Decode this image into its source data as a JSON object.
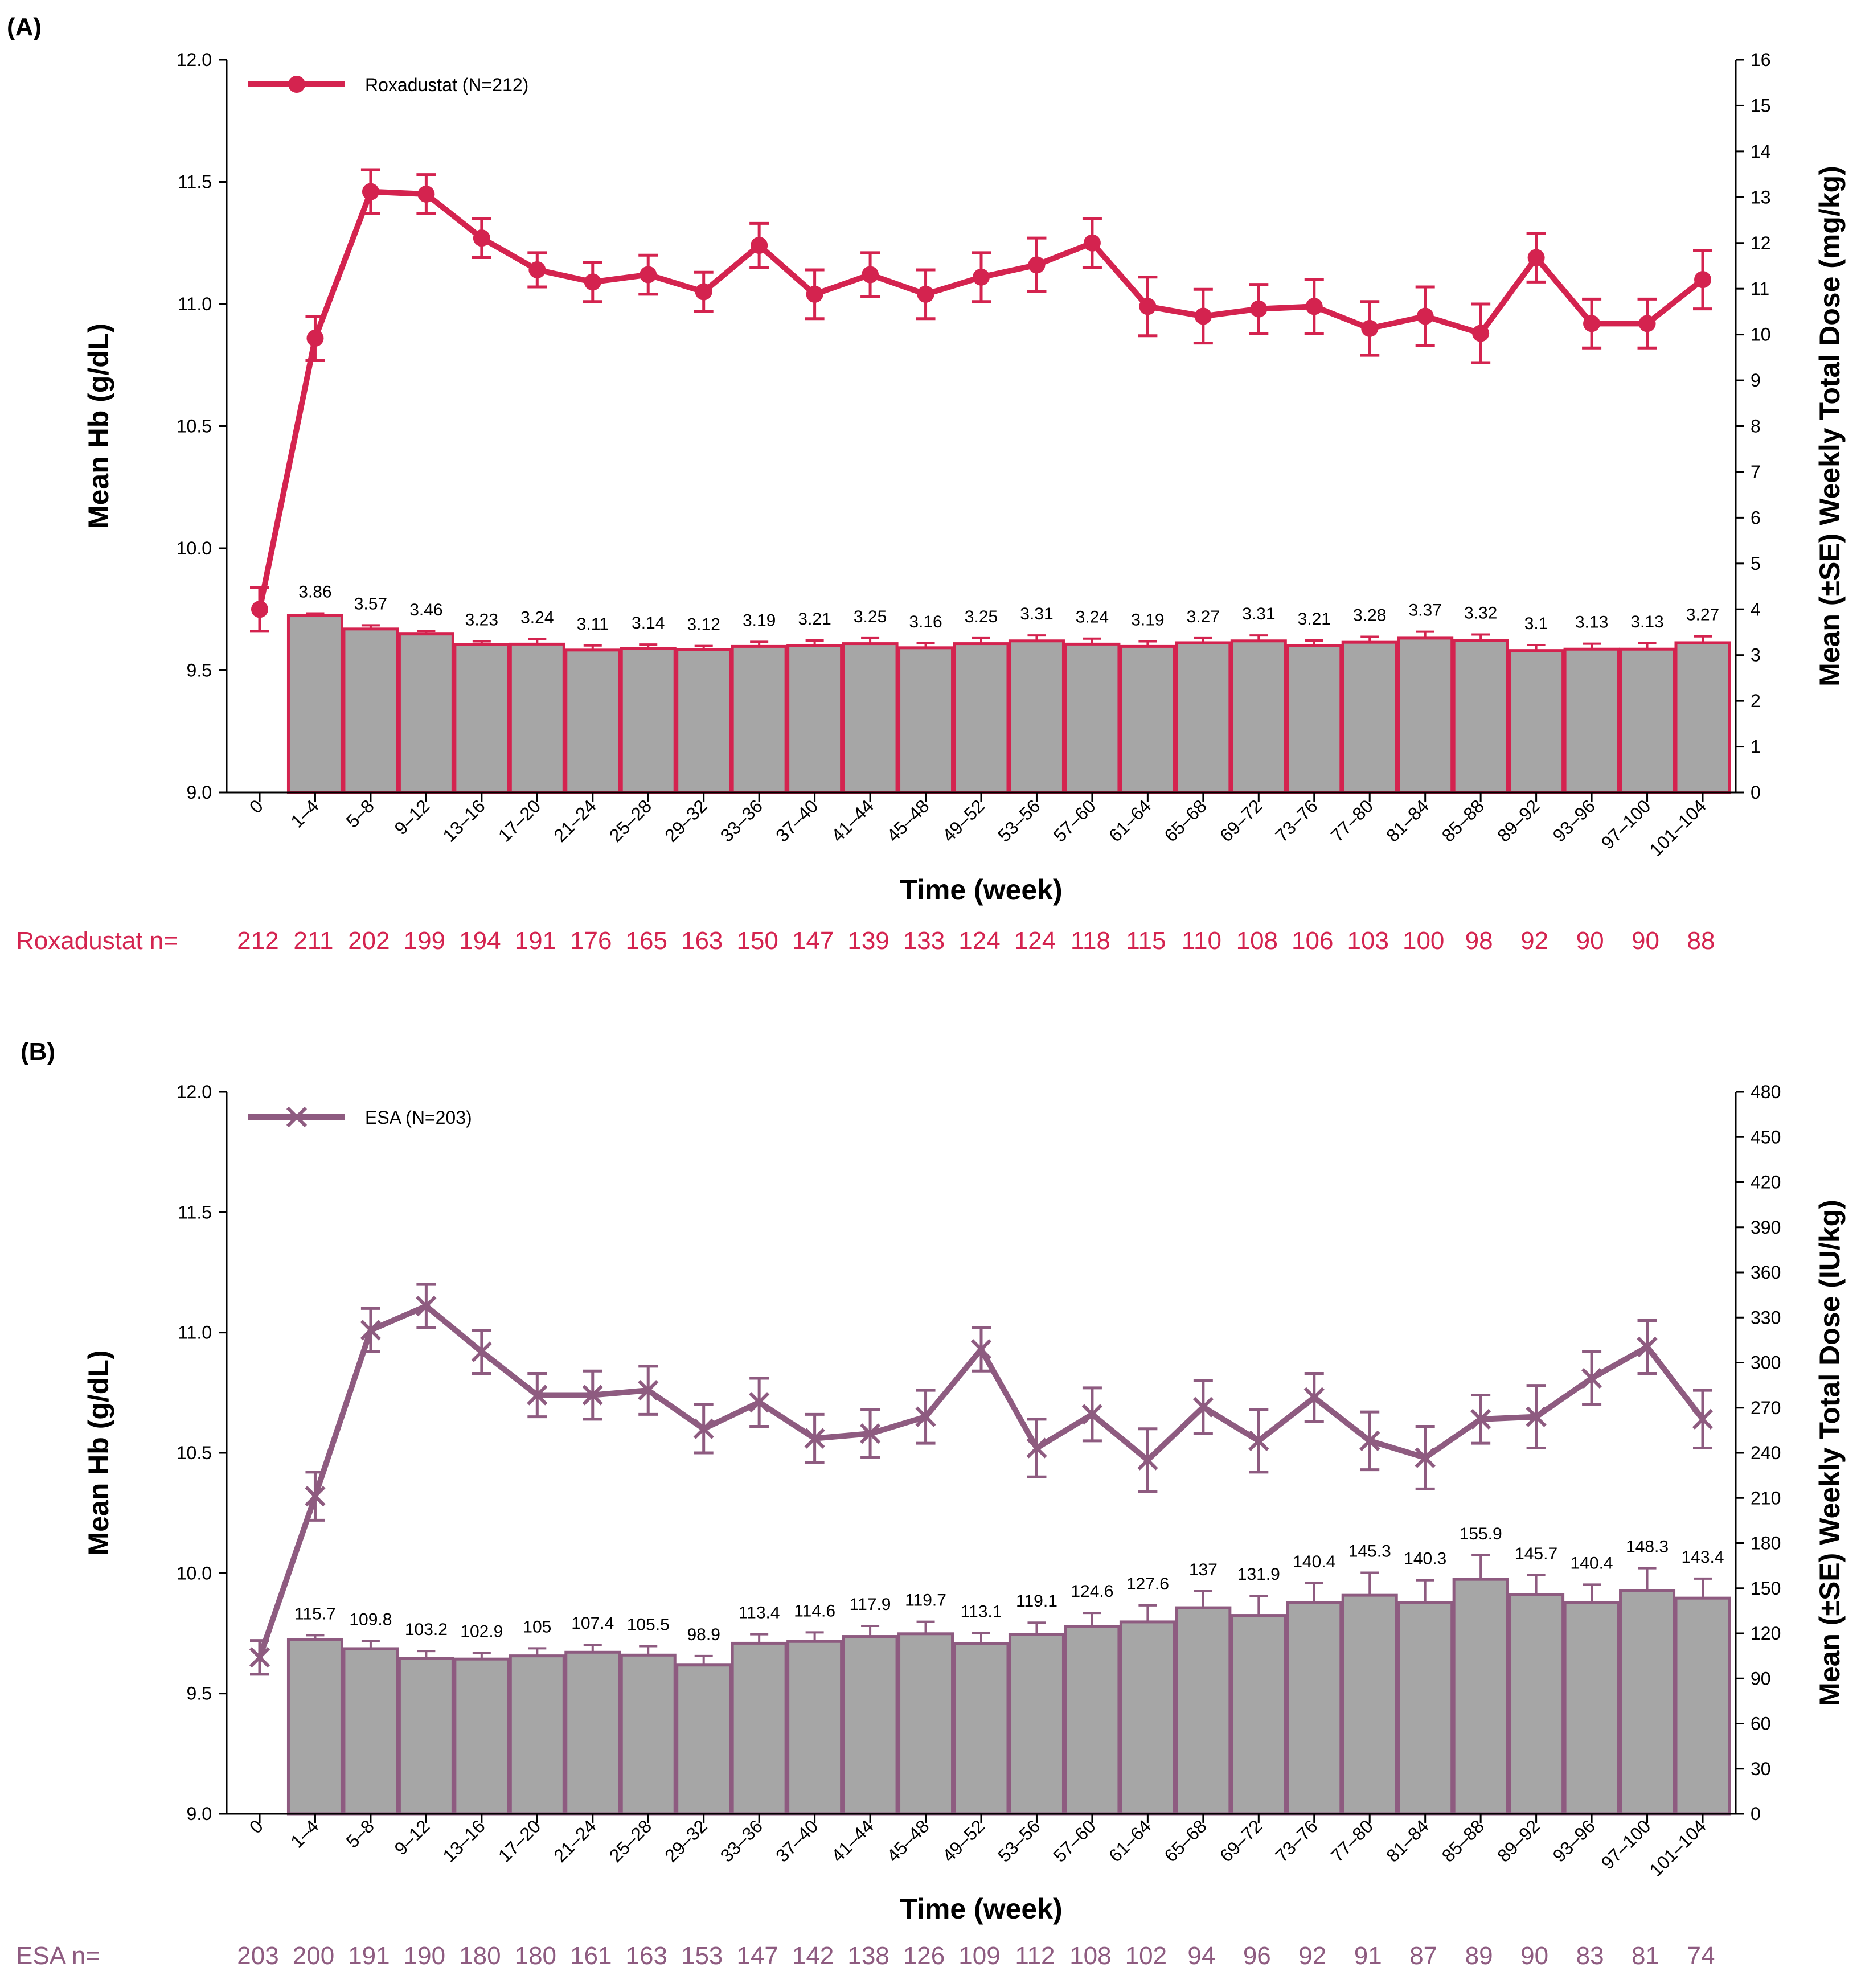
{
  "chart_data": [
    {
      "panel_label": "(A)",
      "type": "bar+line",
      "categories": [
        "0",
        "1–4",
        "5–8",
        "9–12",
        "13–16",
        "17–20",
        "21–24",
        "25–28",
        "29–32",
        "33–36",
        "37–40",
        "41–44",
        "45–48",
        "49–52",
        "53–56",
        "57–60",
        "61–64",
        "65–68",
        "69–72",
        "73–76",
        "77–80",
        "81–84",
        "85–88",
        "89–92",
        "93–96",
        "97–100",
        "101–104"
      ],
      "xlabel": "Time (week)",
      "ylabel_left": "Mean Hb (g/dL)",
      "ylabel_right": "Mean (±SE) Weekly Total Dose (mg/kg)",
      "ylim_left": [
        9.0,
        12.0
      ],
      "yticks_left": [
        "9.0",
        "9.5",
        "10.0",
        "10.5",
        "11.0",
        "11.5",
        "12.0"
      ],
      "ylim_right": [
        0,
        16
      ],
      "yticks_right": [
        "0",
        "1",
        "2",
        "3",
        "4",
        "5",
        "6",
        "7",
        "8",
        "9",
        "10",
        "11",
        "12",
        "13",
        "14",
        "15",
        "16"
      ],
      "line_series": {
        "name": "Roxadustat (N=212)",
        "color": "#d4234f",
        "marker": "circle",
        "values": [
          9.75,
          10.86,
          11.46,
          11.45,
          11.27,
          11.14,
          11.09,
          11.12,
          11.05,
          11.24,
          11.04,
          11.12,
          11.04,
          11.11,
          11.16,
          11.25,
          10.99,
          10.95,
          10.98,
          10.99,
          10.9,
          10.95,
          10.88,
          11.19,
          10.92,
          10.92,
          11.1
        ],
        "se": [
          0.09,
          0.09,
          0.09,
          0.08,
          0.08,
          0.07,
          0.08,
          0.08,
          0.08,
          0.09,
          0.1,
          0.09,
          0.1,
          0.1,
          0.11,
          0.1,
          0.12,
          0.11,
          0.1,
          0.11,
          0.11,
          0.12,
          0.12,
          0.1,
          0.1,
          0.1,
          0.12
        ]
      },
      "bar_series": {
        "name": "Weekly total dose",
        "fill": "#a6a6a6",
        "edge": "#d4234f",
        "values": [
          null,
          3.86,
          3.57,
          3.46,
          3.23,
          3.24,
          3.11,
          3.14,
          3.12,
          3.19,
          3.21,
          3.25,
          3.16,
          3.25,
          3.31,
          3.24,
          3.19,
          3.27,
          3.31,
          3.21,
          3.28,
          3.37,
          3.32,
          3.1,
          3.13,
          3.13,
          3.27
        ],
        "labels": [
          "",
          "3.86",
          "3.57",
          "3.46",
          "3.23",
          "3.24",
          "3.11",
          "3.14",
          "3.12",
          "3.19",
          "3.21",
          "3.25",
          "3.16",
          "3.25",
          "3.31",
          "3.24",
          "3.19",
          "3.27",
          "3.31",
          "3.21",
          "3.28",
          "3.37",
          "3.32",
          "3.1",
          "3.13",
          "3.13",
          "3.27"
        ],
        "se": [
          0,
          0.05,
          0.08,
          0.06,
          0.07,
          0.11,
          0.1,
          0.09,
          0.08,
          0.1,
          0.11,
          0.12,
          0.1,
          0.12,
          0.12,
          0.12,
          0.11,
          0.1,
          0.12,
          0.11,
          0.12,
          0.14,
          0.13,
          0.12,
          0.12,
          0.13,
          0.14
        ]
      },
      "n_row": {
        "label": "Roxadustat n=",
        "color": "#d4234f",
        "values": [
          "212",
          "211",
          "202",
          "199",
          "194",
          "191",
          "176",
          "165",
          "163",
          "150",
          "147",
          "139",
          "133",
          "124",
          "124",
          "118",
          "115",
          "110",
          "108",
          "106",
          "103",
          "100",
          "98",
          "92",
          "90",
          "90",
          "88"
        ]
      }
    },
    {
      "panel_label": "(B)",
      "type": "bar+line",
      "categories": [
        "0",
        "1–4",
        "5–8",
        "9–12",
        "13–16",
        "17–20",
        "21–24",
        "25–28",
        "29–32",
        "33–36",
        "37–40",
        "41–44",
        "45–48",
        "49–52",
        "53–56",
        "57–60",
        "61–64",
        "65–68",
        "69–72",
        "73–76",
        "77–80",
        "81–84",
        "85–88",
        "89–92",
        "93–96",
        "97–100",
        "101–104"
      ],
      "xlabel": "Time (week)",
      "ylabel_left": "Mean Hb (g/dL)",
      "ylabel_right": "Mean (±SE) Weekly Total Dose (IU/kg)",
      "ylim_left": [
        9.0,
        12.0
      ],
      "yticks_left": [
        "9.0",
        "9.5",
        "10.0",
        "10.5",
        "11.0",
        "11.5",
        "12.0"
      ],
      "ylim_right": [
        0,
        480
      ],
      "yticks_right": [
        "0",
        "30",
        "60",
        "90",
        "120",
        "150",
        "180",
        "210",
        "240",
        "270",
        "300",
        "330",
        "360",
        "390",
        "420",
        "450",
        "480"
      ],
      "line_series": {
        "name": "ESA (N=203)",
        "color": "#8e5b80",
        "marker": "x",
        "values": [
          9.65,
          10.32,
          11.01,
          11.11,
          10.92,
          10.74,
          10.74,
          10.76,
          10.6,
          10.71,
          10.56,
          10.58,
          10.65,
          10.93,
          10.52,
          10.66,
          10.47,
          10.69,
          10.55,
          10.73,
          10.55,
          10.48,
          10.64,
          10.65,
          10.81,
          10.94,
          10.64
        ],
        "se": [
          0.07,
          0.1,
          0.09,
          0.09,
          0.09,
          0.09,
          0.1,
          0.1,
          0.1,
          0.1,
          0.1,
          0.1,
          0.11,
          0.09,
          0.12,
          0.11,
          0.13,
          0.11,
          0.13,
          0.1,
          0.12,
          0.13,
          0.1,
          0.13,
          0.11,
          0.11,
          0.12
        ]
      },
      "bar_series": {
        "name": "Weekly total dose",
        "fill": "#a6a6a6",
        "edge": "#8e5b80",
        "values": [
          null,
          115.7,
          109.8,
          103.2,
          102.9,
          105,
          107.4,
          105.5,
          98.9,
          113.4,
          114.6,
          117.9,
          119.7,
          113.1,
          119.1,
          124.6,
          127.6,
          137,
          131.9,
          140.4,
          145.3,
          140.3,
          155.9,
          145.7,
          140.4,
          148.3,
          143.4
        ],
        "labels": [
          "",
          "115.7",
          "109.8",
          "103.2",
          "102.9",
          "105",
          "107.4",
          "105.5",
          "98.9",
          "113.4",
          "114.6",
          "117.9",
          "119.7",
          "113.1",
          "119.1",
          "124.6",
          "127.6",
          "137",
          "131.9",
          "140.4",
          "145.3",
          "140.3",
          "155.9",
          "145.7",
          "140.4",
          "148.3",
          "143.4"
        ],
        "se": [
          0,
          3,
          5,
          5,
          4,
          5,
          5,
          6,
          6,
          6,
          6,
          7,
          8,
          7,
          8,
          9,
          11,
          11,
          13,
          13,
          15,
          15,
          16,
          13,
          12,
          15,
          13
        ]
      },
      "n_row": {
        "label": "ESA n=",
        "color": "#8e5b80",
        "values": [
          "203",
          "200",
          "191",
          "190",
          "180",
          "180",
          "161",
          "163",
          "153",
          "147",
          "142",
          "138",
          "126",
          "109",
          "112",
          "108",
          "102",
          "94",
          "96",
          "92",
          "91",
          "87",
          "89",
          "90",
          "83",
          "81",
          "74"
        ]
      }
    }
  ]
}
